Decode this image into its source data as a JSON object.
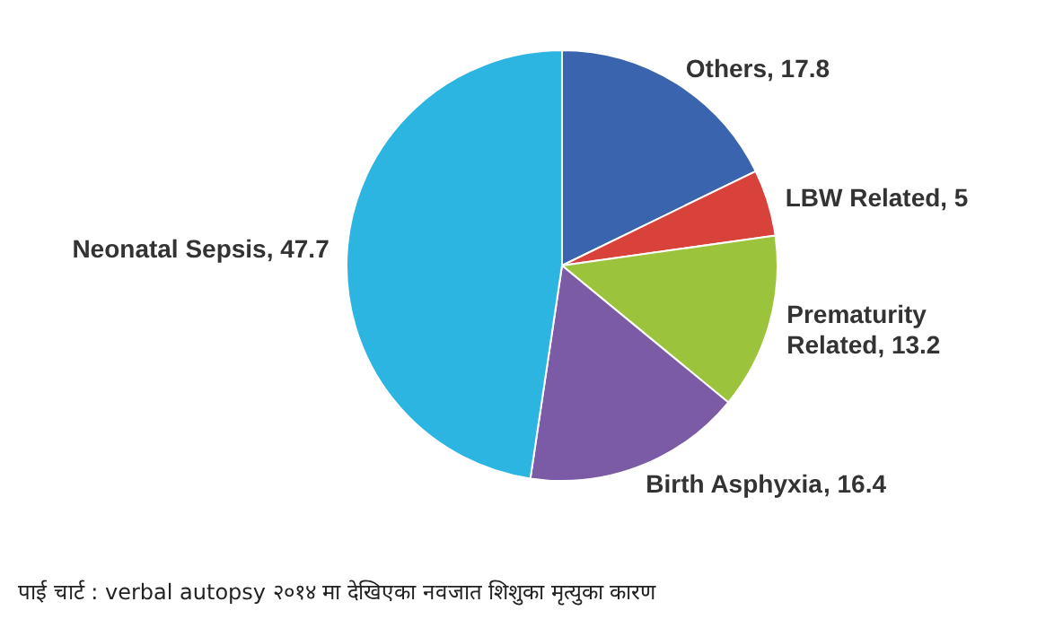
{
  "chart_data": {
    "type": "pie",
    "categories": [
      "Others",
      "LBW Related",
      "Prematurity Related",
      "Birth Asphyxia",
      "Neonatal Sepsis"
    ],
    "values": [
      17.8,
      5,
      13.2,
      16.4,
      47.7
    ],
    "value_labels": [
      ", 17.8",
      ", 5",
      ", 13.2",
      ", 16.4",
      ", 47.7"
    ],
    "colors": [
      "#3a64ad",
      "#d9413b",
      "#9bc33c",
      "#7b5aa6",
      "#2cb5e0"
    ],
    "annotations": [
      "पाई चार्ट : verbal autopsy २०१४ मा देखिएका नवजात शिशुका मृत्युका  कारण"
    ]
  }
}
